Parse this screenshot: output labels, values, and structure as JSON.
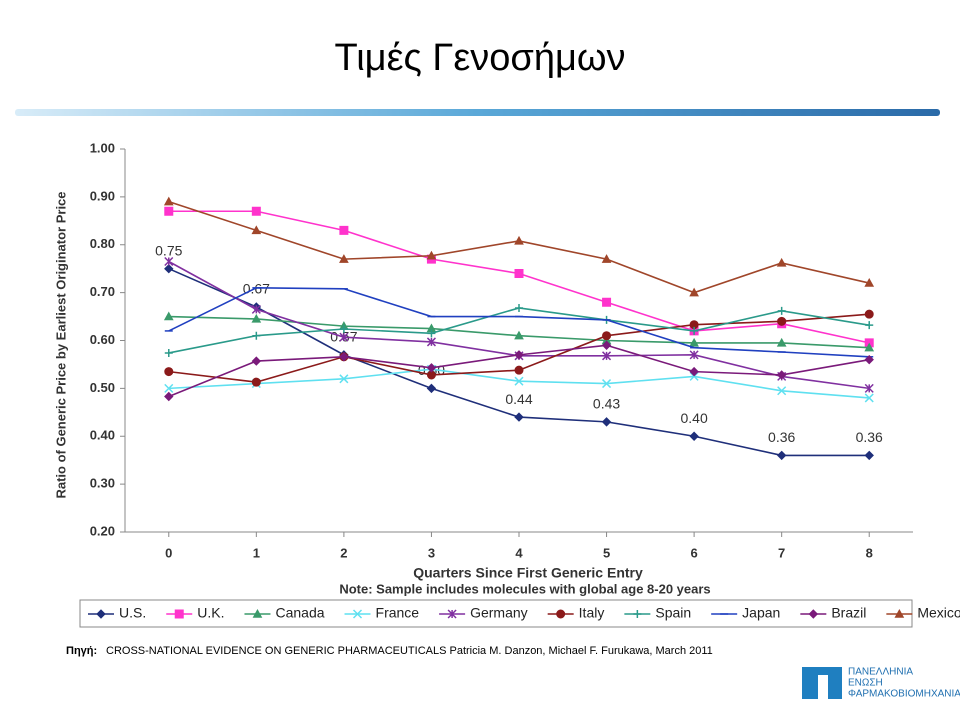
{
  "header": {
    "title": "Τιμές Γενοσήμων"
  },
  "chart_data": {
    "type": "line",
    "x_label": "Quarters Since First Generic Entry",
    "y_label": "Ratio of Generic Price by Earliest Originator Price",
    "note": "Note: Sample includes molecules with global age 8-20 years",
    "x": [
      0,
      1,
      2,
      3,
      4,
      5,
      6,
      7,
      8
    ],
    "xlim": [
      -0.5,
      8.5
    ],
    "xticks": [
      0,
      1,
      2,
      3,
      4,
      5,
      6,
      7,
      8
    ],
    "ylim": [
      0.2,
      1.0
    ],
    "yticks": [
      {
        "value": 0.2,
        "label": "0.20"
      },
      {
        "value": 0.3,
        "label": "0.30"
      },
      {
        "value": 0.4,
        "label": "0.40"
      },
      {
        "value": 0.5,
        "label": "0.50"
      },
      {
        "value": 0.6,
        "label": "0.60"
      },
      {
        "value": 0.7,
        "label": "0.70"
      },
      {
        "value": 0.8,
        "label": "0.80"
      },
      {
        "value": 0.9,
        "label": "0.90"
      },
      {
        "value": 1.0,
        "label": "1.00"
      }
    ],
    "legend": "bottom",
    "series": [
      {
        "name": "U.S.",
        "color": "#1f2f7a",
        "marker": "diamond",
        "values": [
          0.75,
          0.67,
          0.57,
          0.5,
          0.44,
          0.43,
          0.4,
          0.36,
          0.36
        ],
        "value_labels": [
          "0.75",
          "0.67",
          "0.57",
          "0.50",
          "0.44",
          "0.43",
          "0.40",
          "0.36",
          "0.36"
        ]
      },
      {
        "name": "U.K.",
        "color": "#ff33cc",
        "marker": "square",
        "values": [
          0.87,
          0.87,
          0.83,
          0.77,
          0.74,
          0.68,
          0.62,
          0.635,
          0.595
        ]
      },
      {
        "name": "Canada",
        "color": "#3a9a6a",
        "marker": "triangle",
        "values": [
          0.65,
          0.645,
          0.63,
          0.625,
          0.61,
          0.6,
          0.595,
          0.595,
          0.585
        ]
      },
      {
        "name": "France",
        "color": "#5fe0f0",
        "marker": "x",
        "values": [
          0.5,
          0.51,
          0.52,
          0.54,
          0.515,
          0.51,
          0.525,
          0.495,
          0.48
        ]
      },
      {
        "name": "Germany",
        "color": "#8030a0",
        "marker": "star",
        "values": [
          0.765,
          0.665,
          0.607,
          0.597,
          0.568,
          0.568,
          0.57,
          0.525,
          0.5
        ]
      },
      {
        "name": "Italy",
        "color": "#8b1a1a",
        "marker": "circle",
        "values": [
          0.535,
          0.513,
          0.566,
          0.528,
          0.538,
          0.61,
          0.633,
          0.64,
          0.655
        ]
      },
      {
        "name": "Spain",
        "color": "#2a9a8a",
        "marker": "plus",
        "values": [
          0.574,
          0.61,
          0.624,
          0.615,
          0.668,
          0.643,
          0.62,
          0.662,
          0.632
        ]
      },
      {
        "name": "Japan",
        "color": "#2040c0",
        "marker": "dash",
        "values": [
          0.62,
          0.71,
          0.708,
          0.65,
          0.65,
          0.643,
          0.585,
          0.576,
          0.566
        ]
      },
      {
        "name": "Brazil",
        "color": "#7a1a7a",
        "marker": "diamond",
        "values": [
          0.483,
          0.557,
          0.566,
          0.543,
          0.57,
          0.59,
          0.535,
          0.528,
          0.56
        ]
      },
      {
        "name": "Mexico",
        "color": "#a0462a",
        "marker": "triangle",
        "values": [
          0.89,
          0.83,
          0.77,
          0.777,
          0.808,
          0.77,
          0.7,
          0.762,
          0.72
        ]
      }
    ]
  },
  "source_label": "Πηγή:",
  "source": "CROSS-NATIONAL EVIDENCE ON GENERIC PHARMACEUTICALS  Patricia M. Danzon, Michael F. Furukawa, March 2011",
  "logo": {
    "lines": [
      "ΠΑΝΕΛΛΗΝΙΑ",
      "ΕΝΩΣΗ",
      "ΦΑΡΜΑΚΟΒΙΟΜΗΧΑΝΙΑΣ"
    ]
  }
}
